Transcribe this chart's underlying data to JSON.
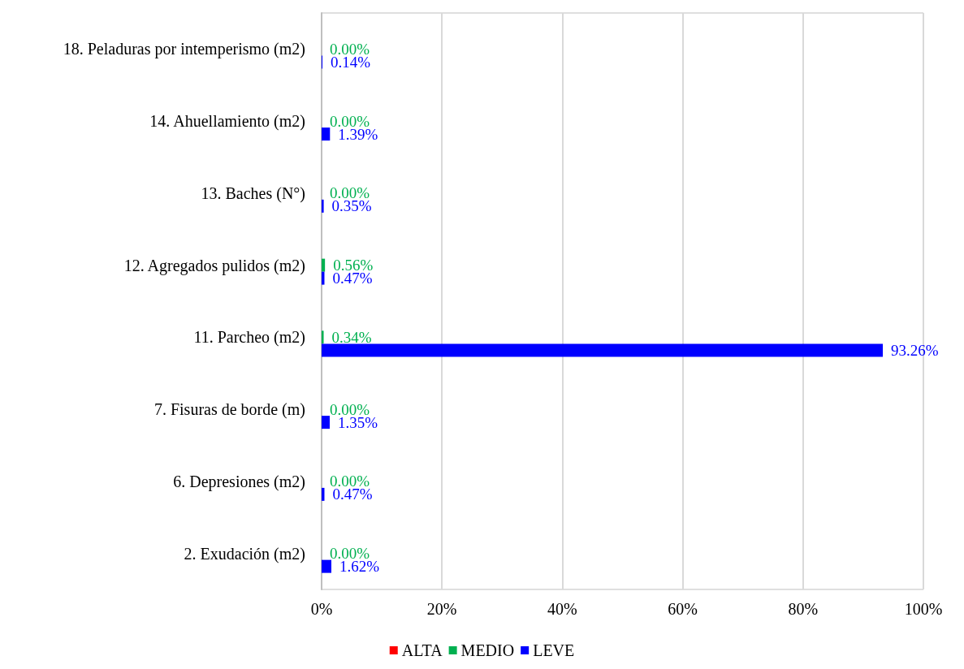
{
  "chart_data": {
    "type": "bar",
    "orientation": "horizontal",
    "categories": [
      "18. Peladuras por intemperismo (m2)",
      "14. Ahuellamiento (m2)",
      "13. Baches (N°)",
      "12. Agregados pulidos (m2)",
      "11. Parcheo (m2)",
      "7. Fisuras de borde (m)",
      "6. Depresiones (m2)",
      "2. Exudación (m2)"
    ],
    "series": [
      {
        "name": "ALTA",
        "color": "#ff0000",
        "values": [
          0,
          0,
          0,
          0,
          0,
          0,
          0,
          0
        ],
        "value_labels": [
          null,
          null,
          null,
          null,
          null,
          null,
          null,
          null
        ]
      },
      {
        "name": "MEDIO",
        "color": "#00b050",
        "values": [
          0,
          0,
          0,
          0.56,
          0.34,
          0,
          0,
          0
        ],
        "value_labels": [
          "0.00%",
          "0.00%",
          "0.00%",
          "0.56%",
          "0.34%",
          "0.00%",
          "0.00%",
          "0.00%"
        ]
      },
      {
        "name": "LEVE",
        "color": "#0000ff",
        "values": [
          0.14,
          1.39,
          0.35,
          0.47,
          93.26,
          1.35,
          0.47,
          1.62
        ],
        "value_labels": [
          "0.14%",
          "1.39%",
          "0.35%",
          "0.47%",
          "93.26%",
          "1.35%",
          "0.47%",
          "1.62%"
        ]
      }
    ],
    "xlim": [
      0,
      100
    ],
    "xticks": [
      {
        "value": 0,
        "label": "0%"
      },
      {
        "value": 20,
        "label": "20%"
      },
      {
        "value": 40,
        "label": "40%"
      },
      {
        "value": 60,
        "label": "60%"
      },
      {
        "value": 80,
        "label": "80%"
      },
      {
        "value": 100,
        "label": "100%"
      }
    ],
    "grid": "x",
    "legend": "bottom"
  }
}
